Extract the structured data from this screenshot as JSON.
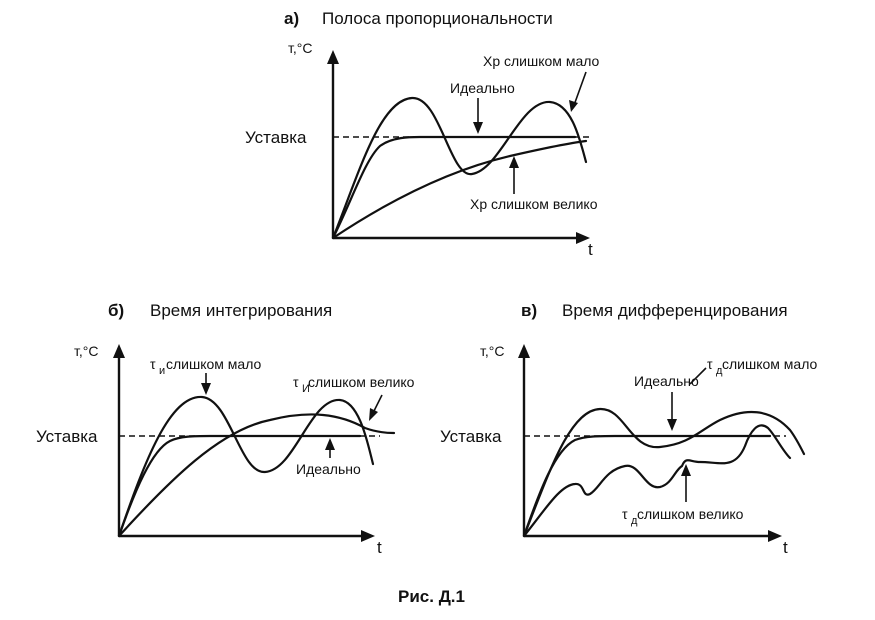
{
  "figure_caption": "Рис.  Д.1",
  "panels": {
    "a": {
      "letter": "а)",
      "title": "Полоса пропорциональности",
      "ylabel": "т,°С",
      "xlabel": "t",
      "setpoint_label": "Уставка",
      "curve_labels": {
        "too_small": "Xр слишком мало",
        "ideal": "Идеально",
        "too_large": "Xр слишком велико"
      }
    },
    "b": {
      "letter": "б)",
      "title": "Время интегрирования",
      "ylabel": "т,°С",
      "xlabel": "t",
      "setpoint_label": "Уставка",
      "curve_labels": {
        "too_small_prefix": "τ",
        "too_small_sub": "и",
        "too_small_text": "слишком мало",
        "too_large_prefix": "τ",
        "too_large_sub": "И",
        "too_large_text": " слишком велико",
        "ideal": "Идеально"
      }
    },
    "c": {
      "letter": "в)",
      "title": "Время дифференцирования",
      "ylabel": "т,°С",
      "xlabel": "t",
      "setpoint_label": "Уставка",
      "curve_labels": {
        "ideal": "Идеально",
        "too_small_prefix": "τ",
        "too_small_sub": "д",
        "too_small_text": " слишком мало",
        "too_large_prefix": "τ",
        "too_large_sub": "д",
        "too_large_text": " слишком велико"
      }
    }
  }
}
